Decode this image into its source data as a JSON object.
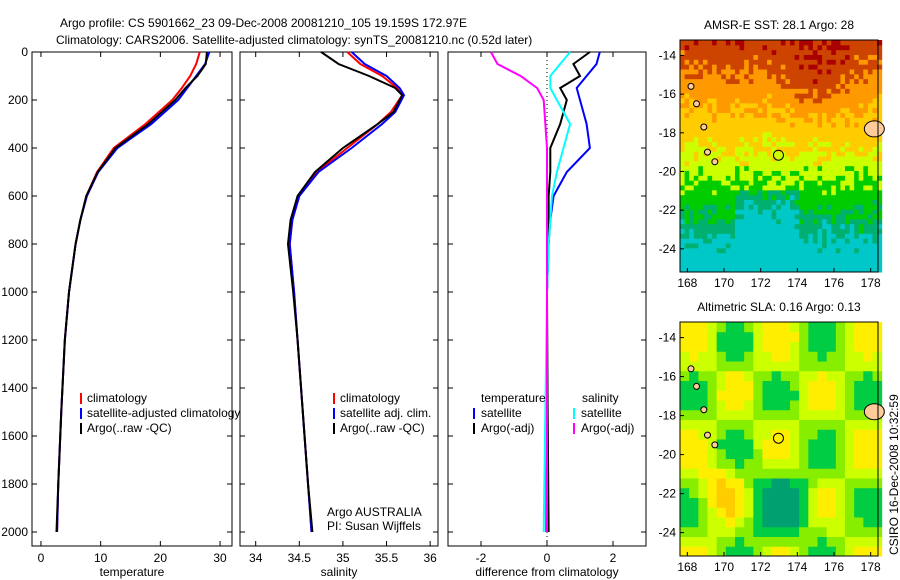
{
  "title": {
    "line1": "Argo profile: CS 5901662_23 09-Dec-2008 20081210_105 19.159S 172.97E",
    "line2": "Climatology: CARS2006. Satellite-adjusted climatology: synTS_20081210.nc (0.52d later)"
  },
  "credit": "CSIRO 16-Dec-2008 10:32:59",
  "colors": {
    "climatology": "#ff0000",
    "satellite": "#0000ff",
    "argo": "#000000",
    "sal_satellite": "#00ffff",
    "sal_argo": "#ff00ff"
  },
  "chart_data": [
    {
      "type": "line",
      "xlabel": "temperature",
      "ylabel": "",
      "xlim": [
        -1.5,
        32
      ],
      "ylim": [
        2050,
        0
      ],
      "xticks": [
        "0",
        "10",
        "20",
        "30"
      ],
      "yticks": [
        "0",
        "200",
        "400",
        "600",
        "800",
        "1000",
        "1200",
        "1400",
        "1600",
        "1800",
        "2000"
      ],
      "legend": [
        "climatology",
        "satellite-adjusted climatology",
        "Argo(..raw -QC)"
      ],
      "depth": [
        0,
        50,
        100,
        150,
        200,
        300,
        400,
        500,
        600,
        700,
        800,
        1000,
        1200,
        1500,
        1800,
        2000
      ],
      "series": [
        {
          "name": "climatology",
          "values": [
            26.6,
            26.0,
            25.0,
            23.6,
            22.0,
            17.5,
            12.2,
            9.4,
            7.6,
            6.6,
            5.8,
            4.7,
            4.0,
            3.4,
            2.9,
            2.7
          ]
        },
        {
          "name": "satellite-adjusted climatology",
          "values": [
            28.2,
            27.5,
            26.0,
            24.5,
            23.0,
            18.5,
            12.8,
            9.6,
            7.7,
            6.6,
            5.8,
            4.7,
            4.0,
            3.4,
            2.9,
            2.7
          ]
        },
        {
          "name": "Argo(..raw -QC)",
          "values": [
            27.8,
            27.6,
            26.2,
            24.2,
            22.5,
            18.0,
            12.5,
            9.5,
            7.6,
            6.6,
            5.8,
            4.7,
            4.0,
            3.4,
            2.9,
            2.6
          ]
        }
      ]
    },
    {
      "type": "line",
      "xlabel": "salinity",
      "xlim": [
        33.82,
        36.09
      ],
      "ylim": [
        2050,
        0
      ],
      "xticks": [
        "34",
        "34.5",
        "35",
        "35.5",
        "36"
      ],
      "legend": [
        "climatology",
        "satellite adj. clim.",
        "Argo(..raw -QC)"
      ],
      "annotation": [
        "Argo AUSTRALIA",
        "PI: Susan Wijffels"
      ],
      "depth": [
        0,
        50,
        100,
        150,
        180,
        250,
        300,
        400,
        500,
        600,
        700,
        800,
        1000,
        1200,
        1500,
        1800,
        2000
      ],
      "series": [
        {
          "name": "climatology",
          "values": [
            35.05,
            35.2,
            35.45,
            35.62,
            35.68,
            35.55,
            35.4,
            35.05,
            34.7,
            34.5,
            34.42,
            34.39,
            34.44,
            34.48,
            34.54,
            34.6,
            34.64
          ]
        },
        {
          "name": "satellite adj. clim.",
          "values": [
            35.1,
            35.25,
            35.5,
            35.65,
            35.7,
            35.6,
            35.45,
            35.1,
            34.72,
            34.5,
            34.42,
            34.39,
            34.44,
            34.48,
            34.54,
            34.6,
            34.64
          ]
        },
        {
          "name": "Argo(..raw -QC)",
          "values": [
            34.75,
            34.95,
            35.3,
            35.6,
            35.68,
            35.58,
            35.4,
            35.0,
            34.68,
            34.48,
            34.4,
            34.37,
            34.43,
            34.48,
            34.54,
            34.6,
            34.65
          ]
        }
      ]
    },
    {
      "type": "line",
      "xlabel": "difference from climatology",
      "xlim": [
        -3,
        3
      ],
      "ylim": [
        2050,
        0
      ],
      "xticks": [
        "-2",
        "0",
        "2"
      ],
      "legend_titles": [
        "temperature",
        "salinity"
      ],
      "legend": [
        "satellite",
        "Argo(-adj)",
        "satellite",
        "Argo(-adj)"
      ],
      "depth": [
        0,
        50,
        100,
        150,
        200,
        300,
        400,
        500,
        600,
        700,
        800,
        1000,
        1500,
        2000
      ],
      "series": [
        {
          "name": "temperature satellite",
          "values": [
            1.6,
            1.5,
            1.2,
            0.9,
            1.0,
            1.2,
            1.3,
            0.6,
            0.2,
            0.1,
            0.05,
            0.0,
            0.0,
            -0.02
          ]
        },
        {
          "name": "temperature Argo(-adj)",
          "values": [
            1.3,
            0.8,
            1.0,
            0.4,
            0.6,
            0.4,
            0.1,
            0.1,
            0.05,
            0.05,
            0.03,
            0.0,
            0.02,
            0.05
          ]
        },
        {
          "name": "salinity satellite",
          "values": [
            0.7,
            0.4,
            0.1,
            0.1,
            0.3,
            0.7,
            0.5,
            0.3,
            0.15,
            0.1,
            0.05,
            0.0,
            -0.05,
            -0.1
          ]
        },
        {
          "name": "salinity Argo(-adj)",
          "values": [
            -1.7,
            -1.5,
            -0.8,
            -0.3,
            -0.1,
            -0.05,
            0.0,
            0.0,
            0.0,
            0.0,
            0.0,
            0.0,
            0.0,
            0.0
          ]
        }
      ]
    },
    {
      "type": "heatmap",
      "title": "AMSR-E SST: 28.1 Argo: 28",
      "xlim": [
        167.6,
        178.4
      ],
      "ylim": [
        -25.2,
        -13.2
      ],
      "xticks": [
        "168",
        "170",
        "172",
        "174",
        "176",
        "178"
      ],
      "yticks": [
        "-14",
        "-16",
        "-18",
        "-20",
        "-22",
        "-24"
      ],
      "marker": {
        "lon": 172.97,
        "lat": -19.159
      }
    },
    {
      "type": "heatmap",
      "title": "Altimetric SLA: 0.16 Argo: 0.13",
      "xlim": [
        167.6,
        178.4
      ],
      "ylim": [
        -25.2,
        -13.2
      ],
      "xticks": [
        "168",
        "170",
        "172",
        "174",
        "176",
        "178"
      ],
      "yticks": [
        "-14",
        "-16",
        "-18",
        "-20",
        "-22",
        "-24"
      ],
      "marker": {
        "lon": 172.97,
        "lat": -19.159
      }
    }
  ]
}
